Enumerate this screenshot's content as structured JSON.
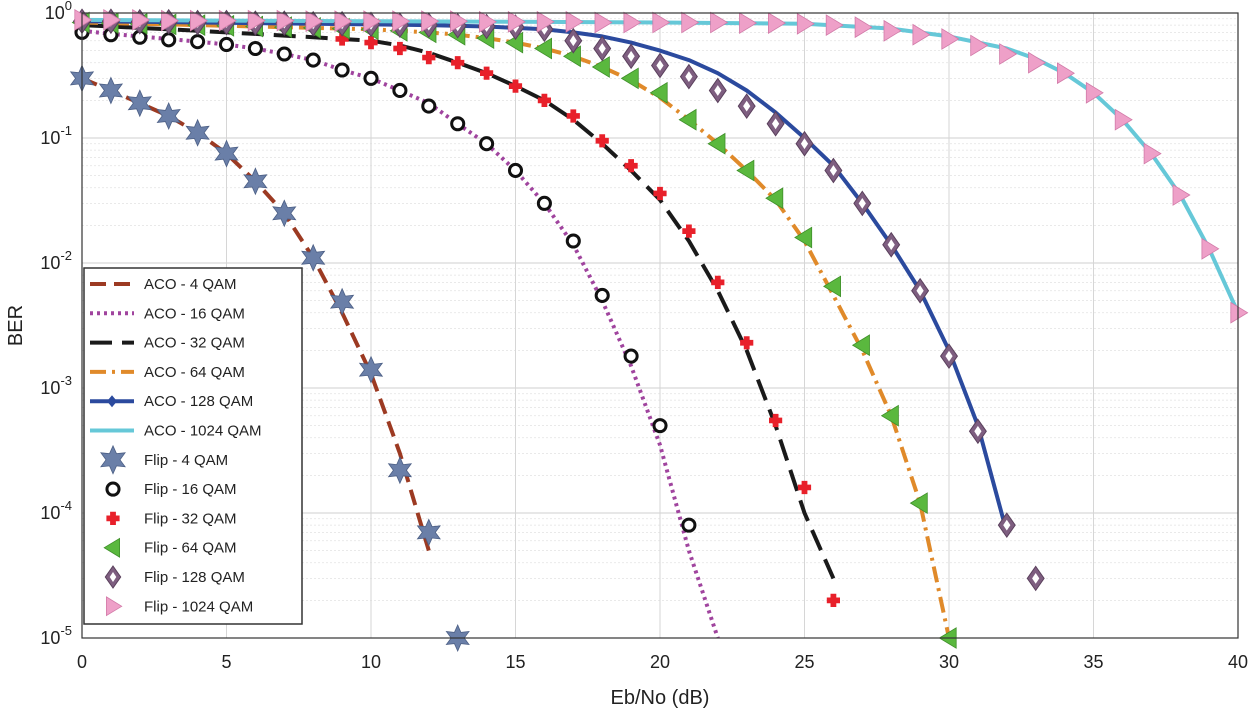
{
  "chart_data": {
    "type": "line",
    "xlabel": "Eb/No (dB)",
    "ylabel": "BER",
    "xlim": [
      0,
      40
    ],
    "ylim": [
      1e-05,
      1
    ],
    "yscale": "log",
    "grid": true,
    "legend_position": "left",
    "xticks": [
      "0",
      "5",
      "10",
      "15",
      "20",
      "25",
      "30",
      "35",
      "40"
    ],
    "yticks": [
      {
        "base": "10",
        "exp": "0"
      },
      {
        "base": "10",
        "exp": "-1"
      },
      {
        "base": "10",
        "exp": "-2"
      },
      {
        "base": "10",
        "exp": "-3"
      },
      {
        "base": "10",
        "exp": "-4"
      },
      {
        "base": "10",
        "exp": "-5"
      }
    ],
    "series": [
      {
        "name": "ACO - 4 QAM",
        "kind": "line",
        "color": "#9c3a22",
        "dash": "dash",
        "x": [
          0,
          1,
          2,
          3,
          4,
          5,
          6,
          7,
          8,
          9,
          10,
          11,
          12
        ],
        "y": [
          0.3,
          0.24,
          0.19,
          0.15,
          0.11,
          0.075,
          0.045,
          0.025,
          0.011,
          0.004,
          0.0013,
          0.0003,
          5e-05
        ]
      },
      {
        "name": "ACO - 16 QAM",
        "kind": "line",
        "color": "#a0449e",
        "dash": "dot",
        "x": [
          0,
          1,
          2,
          3,
          4,
          5,
          6,
          7,
          8,
          9,
          10,
          11,
          12,
          13,
          14,
          15,
          16,
          17,
          18,
          19,
          20,
          21,
          22
        ],
        "y": [
          0.72,
          0.68,
          0.65,
          0.62,
          0.59,
          0.56,
          0.52,
          0.47,
          0.42,
          0.35,
          0.3,
          0.24,
          0.19,
          0.13,
          0.09,
          0.055,
          0.03,
          0.014,
          0.005,
          0.0015,
          0.00035,
          5e-05,
          1e-05
        ]
      },
      {
        "name": "ACO - 32 QAM",
        "kind": "line",
        "color": "#1a1a1a",
        "dash": "longdash",
        "x": [
          0,
          1,
          2,
          3,
          4,
          5,
          6,
          7,
          8,
          9,
          10,
          11,
          12,
          13,
          14,
          15,
          16,
          17,
          18,
          19,
          20,
          21,
          22,
          23,
          24,
          25,
          26
        ],
        "y": [
          0.8,
          0.78,
          0.76,
          0.74,
          0.72,
          0.7,
          0.68,
          0.66,
          0.64,
          0.62,
          0.6,
          0.55,
          0.48,
          0.4,
          0.33,
          0.26,
          0.2,
          0.14,
          0.09,
          0.055,
          0.032,
          0.015,
          0.006,
          0.002,
          0.0005,
          0.0001,
          3e-05
        ]
      },
      {
        "name": "ACO - 64 QAM",
        "kind": "line",
        "color": "#e08a2a",
        "dash": "dashdot",
        "x": [
          0,
          1,
          2,
          3,
          4,
          5,
          6,
          7,
          8,
          9,
          10,
          11,
          12,
          13,
          14,
          15,
          16,
          17,
          18,
          19,
          20,
          21,
          22,
          23,
          24,
          25,
          26,
          27,
          28,
          29,
          30
        ],
        "y": [
          0.84,
          0.83,
          0.82,
          0.81,
          0.8,
          0.79,
          0.78,
          0.77,
          0.76,
          0.75,
          0.74,
          0.72,
          0.7,
          0.67,
          0.63,
          0.58,
          0.52,
          0.45,
          0.37,
          0.29,
          0.21,
          0.14,
          0.09,
          0.055,
          0.032,
          0.015,
          0.0055,
          0.002,
          0.0006,
          0.00012,
          1e-05
        ]
      },
      {
        "name": "ACO - 128 QAM",
        "kind": "line",
        "color": "#2b4a9e",
        "dash": "solid",
        "x": [
          0,
          2,
          4,
          6,
          8,
          10,
          12,
          14,
          16,
          17,
          18,
          19,
          20,
          21,
          22,
          23,
          24,
          25,
          26,
          27,
          28,
          29,
          30,
          31,
          32
        ],
        "y": [
          0.86,
          0.85,
          0.84,
          0.83,
          0.82,
          0.81,
          0.8,
          0.78,
          0.74,
          0.7,
          0.65,
          0.58,
          0.5,
          0.42,
          0.33,
          0.24,
          0.16,
          0.1,
          0.06,
          0.03,
          0.014,
          0.006,
          0.002,
          0.0005,
          7e-05
        ]
      },
      {
        "name": "ACO - 1024 QAM",
        "kind": "line",
        "color": "#66c8d8",
        "dash": "solid",
        "x": [
          0,
          5,
          10,
          15,
          20,
          25,
          28,
          30,
          32,
          33,
          34,
          35,
          36,
          37,
          38,
          39,
          40
        ],
        "y": [
          0.88,
          0.87,
          0.86,
          0.85,
          0.84,
          0.82,
          0.75,
          0.65,
          0.52,
          0.43,
          0.33,
          0.23,
          0.14,
          0.075,
          0.035,
          0.013,
          0.004
        ]
      },
      {
        "name": "Flip - 4 QAM",
        "kind": "marker",
        "marker": "star",
        "color": "#6a7fa8",
        "x": [
          0,
          1,
          2,
          3,
          4,
          5,
          6,
          7,
          8,
          9,
          10,
          11,
          12,
          13
        ],
        "y": [
          0.3,
          0.24,
          0.19,
          0.15,
          0.11,
          0.075,
          0.045,
          0.025,
          0.011,
          0.0049,
          0.0014,
          0.00022,
          7e-05,
          1e-05
        ]
      },
      {
        "name": "Flip - 16 QAM",
        "kind": "marker",
        "marker": "ring",
        "color": "#111111",
        "x": [
          0,
          1,
          2,
          3,
          4,
          5,
          6,
          7,
          8,
          9,
          10,
          11,
          12,
          13,
          14,
          15,
          16,
          17,
          18,
          19,
          20,
          21
        ],
        "y": [
          0.7,
          0.67,
          0.64,
          0.61,
          0.59,
          0.56,
          0.52,
          0.47,
          0.42,
          0.35,
          0.3,
          0.24,
          0.18,
          0.13,
          0.09,
          0.055,
          0.03,
          0.015,
          0.0055,
          0.0018,
          0.0005,
          8e-05
        ]
      },
      {
        "name": "Flip - 32 QAM",
        "kind": "marker",
        "marker": "plus",
        "color": "#e8202a",
        "x": [
          9,
          10,
          11,
          12,
          13,
          14,
          15,
          16,
          17,
          18,
          19,
          20,
          21,
          22,
          23,
          24,
          25,
          26
        ],
        "y": [
          0.62,
          0.58,
          0.52,
          0.44,
          0.4,
          0.33,
          0.26,
          0.2,
          0.15,
          0.095,
          0.06,
          0.036,
          0.018,
          0.007,
          0.0023,
          0.00055,
          0.00016,
          2e-05
        ]
      },
      {
        "name": "Flip - 64 QAM",
        "kind": "marker",
        "marker": "triangle-left",
        "color": "#5ab83e",
        "x": [
          0,
          1,
          2,
          3,
          4,
          5,
          6,
          7,
          8,
          9,
          10,
          11,
          12,
          13,
          14,
          15,
          16,
          17,
          18,
          19,
          20,
          21,
          22,
          23,
          24,
          25,
          26,
          27,
          28,
          29,
          30
        ],
        "y": [
          0.84,
          0.83,
          0.82,
          0.81,
          0.8,
          0.79,
          0.78,
          0.77,
          0.76,
          0.75,
          0.74,
          0.72,
          0.7,
          0.67,
          0.63,
          0.58,
          0.52,
          0.45,
          0.37,
          0.3,
          0.23,
          0.14,
          0.09,
          0.055,
          0.033,
          0.016,
          0.0065,
          0.0022,
          0.0006,
          0.00012,
          1e-05
        ]
      },
      {
        "name": "Flip - 128 QAM",
        "kind": "marker",
        "marker": "diamond",
        "color": "#7e5e80",
        "x": [
          0,
          1,
          2,
          3,
          4,
          5,
          6,
          7,
          8,
          9,
          10,
          11,
          12,
          13,
          14,
          15,
          16,
          17,
          18,
          19,
          20,
          21,
          22,
          23,
          24,
          25,
          26,
          27,
          28,
          29,
          30,
          31,
          32,
          33
        ],
        "y": [
          0.86,
          0.86,
          0.85,
          0.85,
          0.84,
          0.84,
          0.83,
          0.83,
          0.82,
          0.82,
          0.81,
          0.8,
          0.8,
          0.79,
          0.78,
          0.77,
          0.74,
          0.6,
          0.52,
          0.45,
          0.38,
          0.31,
          0.24,
          0.18,
          0.13,
          0.09,
          0.055,
          0.03,
          0.014,
          0.006,
          0.0018,
          0.00045,
          8e-05,
          3e-05
        ]
      },
      {
        "name": "Flip - 1024 QAM",
        "kind": "marker",
        "marker": "triangle-right",
        "color": "#eea0c8",
        "x": [
          0,
          1,
          2,
          3,
          4,
          5,
          6,
          7,
          8,
          9,
          10,
          11,
          12,
          13,
          14,
          15,
          16,
          17,
          18,
          19,
          20,
          21,
          22,
          23,
          24,
          25,
          26,
          27,
          28,
          29,
          30,
          31,
          32,
          33,
          34,
          35,
          36,
          37,
          38,
          39,
          40
        ],
        "y": [
          0.88,
          0.88,
          0.88,
          0.87,
          0.87,
          0.87,
          0.87,
          0.87,
          0.86,
          0.86,
          0.86,
          0.86,
          0.86,
          0.86,
          0.85,
          0.85,
          0.85,
          0.85,
          0.84,
          0.84,
          0.84,
          0.84,
          0.84,
          0.83,
          0.83,
          0.82,
          0.8,
          0.77,
          0.72,
          0.67,
          0.62,
          0.55,
          0.47,
          0.4,
          0.33,
          0.23,
          0.14,
          0.075,
          0.035,
          0.013,
          0.004
        ]
      }
    ]
  }
}
